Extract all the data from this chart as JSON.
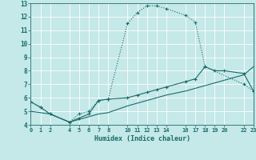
{
  "xlabel": "Humidex (Indice chaleur)",
  "xlim": [
    0,
    23
  ],
  "ylim": [
    4,
    13
  ],
  "xticks": [
    0,
    1,
    2,
    4,
    5,
    6,
    7,
    8,
    10,
    11,
    12,
    13,
    14,
    16,
    17,
    18,
    19,
    20,
    22,
    23
  ],
  "yticks": [
    4,
    5,
    6,
    7,
    8,
    9,
    10,
    11,
    12,
    13
  ],
  "bg_color": "#c5e8e8",
  "line_color": "#1a6b6b",
  "grid_color": "#b0d8d8",
  "line1": {
    "x": [
      0,
      1,
      2,
      4,
      5,
      6,
      7,
      8,
      10,
      11,
      12,
      13,
      14,
      16,
      17,
      18,
      22,
      23
    ],
    "y": [
      5.7,
      5.3,
      4.8,
      4.2,
      4.8,
      5.0,
      5.8,
      5.9,
      11.5,
      12.3,
      12.8,
      12.8,
      12.6,
      12.1,
      11.6,
      8.3,
      7.0,
      6.5
    ]
  },
  "line2": {
    "x": [
      0,
      1,
      2,
      4,
      5,
      6,
      7,
      8,
      10,
      11,
      12,
      13,
      14,
      16,
      17,
      18,
      19,
      20,
      22,
      23
    ],
    "y": [
      5.7,
      5.3,
      4.8,
      4.2,
      4.5,
      4.8,
      5.8,
      5.9,
      6.0,
      6.2,
      6.4,
      6.6,
      6.8,
      7.2,
      7.4,
      8.3,
      8.0,
      8.0,
      7.8,
      6.5
    ]
  },
  "line3": {
    "x": [
      0,
      2,
      4,
      5,
      6,
      7,
      8,
      10,
      11,
      12,
      13,
      14,
      16,
      17,
      18,
      19,
      20,
      22,
      23
    ],
    "y": [
      5.0,
      4.8,
      4.2,
      4.4,
      4.6,
      4.8,
      4.9,
      5.4,
      5.6,
      5.8,
      6.0,
      6.2,
      6.5,
      6.7,
      6.9,
      7.1,
      7.3,
      7.7,
      8.3
    ]
  }
}
